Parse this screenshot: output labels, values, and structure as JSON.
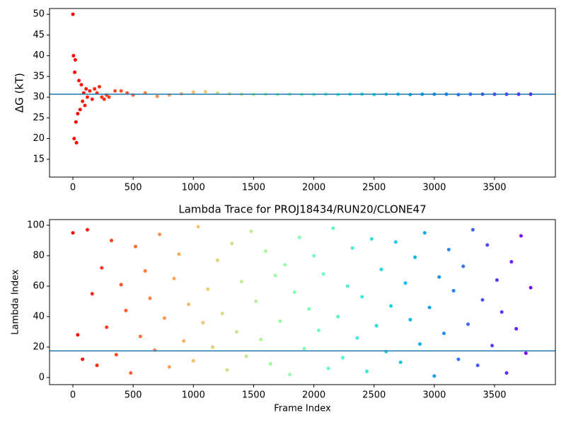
{
  "chart_data": [
    {
      "type": "scatter",
      "ylabel": "ΔG (kT)",
      "x": [
        0,
        5,
        10,
        15,
        20,
        25,
        30,
        40,
        50,
        60,
        70,
        80,
        90,
        100,
        110,
        120,
        140,
        160,
        180,
        200,
        220,
        240,
        260,
        280,
        300,
        350,
        400,
        450,
        500,
        600,
        700,
        800,
        900,
        1000,
        1100,
        1200,
        1300,
        1400,
        1500,
        1600,
        1700,
        1800,
        1900,
        2000,
        2100,
        2200,
        2300,
        2400,
        2500,
        2600,
        2700,
        2800,
        2900,
        3000,
        3100,
        3200,
        3300,
        3400,
        3500,
        3600,
        3700,
        3800
      ],
      "values": [
        50,
        40,
        20,
        36,
        39,
        24,
        19,
        26,
        34,
        27,
        33,
        29,
        31,
        28,
        32,
        30,
        31.5,
        29.5,
        32,
        31,
        32.5,
        30,
        29.5,
        30.5,
        30,
        31.5,
        31.5,
        31,
        30.5,
        31,
        30.2,
        30.5,
        30.8,
        31.2,
        31.3,
        31,
        30.8,
        30.7,
        30.6,
        30.7,
        30.6,
        30.7,
        30.6,
        30.6,
        30.7,
        30.6,
        30.7,
        30.7,
        30.6,
        30.7,
        30.7,
        30.6,
        30.7,
        30.7,
        30.7,
        30.6,
        30.7,
        30.7,
        30.7,
        30.7,
        30.7,
        30.7
      ],
      "xlim": [
        -194,
        4005
      ],
      "ylim": [
        10.7,
        51.4
      ],
      "xticks": [
        0,
        500,
        1000,
        1500,
        2000,
        2500,
        3000,
        3500
      ],
      "yticks": [
        15,
        20,
        25,
        30,
        35,
        40,
        45,
        50
      ],
      "hline": 30.7,
      "hline_color": "#1f77b4",
      "colormap": "rainbow_r"
    },
    {
      "type": "scatter",
      "title": "Lambda Trace for PROJ18434/RUN20/CLONE47",
      "xlabel": "Frame Index",
      "ylabel": "Lambda Index",
      "x": [
        0,
        40,
        80,
        120,
        160,
        200,
        240,
        280,
        320,
        360,
        400,
        440,
        480,
        520,
        560,
        600,
        640,
        680,
        720,
        760,
        800,
        840,
        880,
        920,
        960,
        1000,
        1040,
        1080,
        1120,
        1160,
        1200,
        1240,
        1280,
        1320,
        1360,
        1400,
        1440,
        1480,
        1520,
        1560,
        1600,
        1640,
        1680,
        1720,
        1760,
        1800,
        1840,
        1880,
        1920,
        1960,
        2000,
        2040,
        2080,
        2120,
        2160,
        2200,
        2240,
        2280,
        2320,
        2360,
        2400,
        2440,
        2480,
        2520,
        2560,
        2600,
        2640,
        2680,
        2720,
        2760,
        2800,
        2840,
        2880,
        2920,
        2960,
        3000,
        3040,
        3080,
        3120,
        3160,
        3200,
        3240,
        3280,
        3320,
        3360,
        3400,
        3440,
        3480,
        3520,
        3560,
        3600,
        3640,
        3680,
        3720,
        3760,
        3800
      ],
      "values": [
        95,
        28,
        12,
        97,
        55,
        8,
        72,
        33,
        90,
        15,
        61,
        44,
        3,
        86,
        27,
        70,
        52,
        18,
        94,
        39,
        7,
        65,
        81,
        24,
        48,
        11,
        99,
        36,
        58,
        20,
        77,
        42,
        5,
        88,
        30,
        63,
        14,
        96,
        50,
        25,
        83,
        9,
        67,
        37,
        74,
        2,
        56,
        92,
        19,
        45,
        80,
        31,
        68,
        6,
        98,
        40,
        13,
        60,
        85,
        26,
        53,
        4,
        91,
        34,
        71,
        17,
        47,
        89,
        10,
        62,
        38,
        79,
        22,
        95,
        46,
        1,
        66,
        29,
        84,
        57,
        12,
        73,
        35,
        97,
        8,
        51,
        87,
        21,
        64,
        43,
        3,
        76,
        32,
        93,
        16,
        59
      ],
      "xlim": [
        -194,
        4005
      ],
      "ylim": [
        -4.65,
        103.7
      ],
      "xticks": [
        0,
        500,
        1000,
        1500,
        2000,
        2500,
        3000,
        3500
      ],
      "yticks": [
        0,
        20,
        40,
        60,
        80,
        100
      ],
      "hline": 17.5,
      "hline_color": "#1f77b4",
      "colormap": "rainbow_r"
    }
  ]
}
